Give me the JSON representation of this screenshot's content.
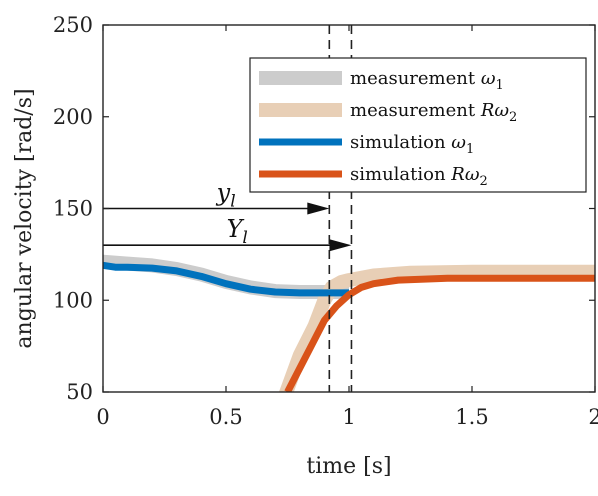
{
  "chart_data": {
    "type": "line",
    "xlabel": "time [s]",
    "ylabel": "angular velocity [rad/s]",
    "xlim": [
      0,
      2
    ],
    "ylim": [
      50,
      250
    ],
    "xticks": [
      0,
      0.5,
      1,
      1.5,
      2
    ],
    "yticks": [
      50,
      100,
      150,
      200,
      250
    ],
    "xtick_labels": [
      "0",
      "0.5",
      "1",
      "1.5",
      "2"
    ],
    "ytick_labels": [
      "50",
      "100",
      "150",
      "200",
      "250"
    ],
    "grid": false,
    "legend_position": "top-right",
    "series": [
      {
        "name": "measurement ω₁",
        "label_text": "measurement ",
        "label_symbol": "ω",
        "label_sub": "1",
        "color": "#cccccc",
        "style": "thick",
        "points": [
          [
            0,
            121
          ],
          [
            0.1,
            120
          ],
          [
            0.2,
            119
          ],
          [
            0.3,
            117
          ],
          [
            0.4,
            114
          ],
          [
            0.5,
            110
          ],
          [
            0.6,
            107
          ],
          [
            0.7,
            105
          ],
          [
            0.8,
            104.5
          ],
          [
            0.9,
            104.5
          ],
          [
            1.0,
            104.5
          ]
        ]
      },
      {
        "name": "measurement Rω₂",
        "label_text": "measurement ",
        "label_symbol": "Rω",
        "label_sub": "2",
        "color": "#e8cfb6",
        "style": "thick",
        "points": [
          [
            0.74,
            48
          ],
          [
            0.8,
            70
          ],
          [
            0.86,
            86
          ],
          [
            0.9,
            100
          ],
          [
            0.93,
            107
          ],
          [
            0.97,
            110
          ],
          [
            1.0,
            111
          ],
          [
            1.1,
            113.5
          ],
          [
            1.25,
            115
          ],
          [
            1.5,
            115.5
          ],
          [
            1.75,
            115.5
          ],
          [
            2.0,
            115.5
          ]
        ]
      },
      {
        "name": "simulation ω₁",
        "label_text": "simulation ",
        "label_symbol": "ω",
        "label_sub": "1",
        "color": "#0072bd",
        "style": "medium",
        "points": [
          [
            0,
            119
          ],
          [
            0.05,
            118
          ],
          [
            0.1,
            118
          ],
          [
            0.2,
            117.5
          ],
          [
            0.3,
            116
          ],
          [
            0.4,
            113
          ],
          [
            0.5,
            109
          ],
          [
            0.6,
            106
          ],
          [
            0.7,
            104.5
          ],
          [
            0.8,
            104
          ],
          [
            0.9,
            104
          ],
          [
            1.0,
            104
          ]
        ]
      },
      {
        "name": "simulation Rω₂",
        "label_text": "simulation ",
        "label_symbol": "Rω",
        "label_sub": "2",
        "color": "#d95319",
        "style": "medium",
        "points": [
          [
            0.75,
            50
          ],
          [
            0.8,
            63
          ],
          [
            0.85,
            76
          ],
          [
            0.9,
            89
          ],
          [
            0.95,
            97
          ],
          [
            1.0,
            103
          ],
          [
            1.05,
            107
          ],
          [
            1.1,
            109
          ],
          [
            1.2,
            111
          ],
          [
            1.4,
            112
          ],
          [
            1.6,
            112
          ],
          [
            2.0,
            112
          ]
        ]
      }
    ],
    "vlines": [
      0.92,
      1.01
    ],
    "annotations": [
      {
        "label": "y",
        "sub": "l",
        "arrow_y": 150,
        "x_from": 0,
        "x_to": 0.92
      },
      {
        "label": "Y",
        "sub": "l",
        "arrow_y": 130,
        "x_from": 0,
        "x_to": 1.01
      }
    ]
  }
}
